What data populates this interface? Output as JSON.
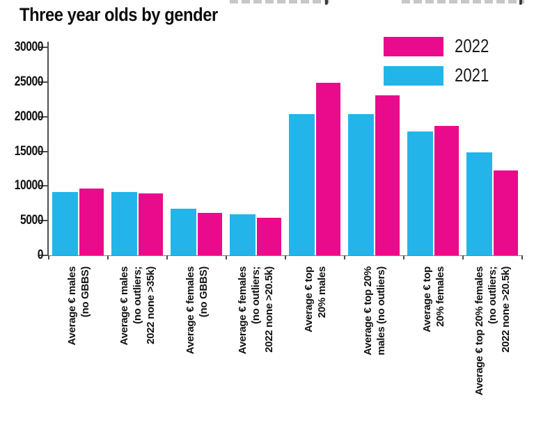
{
  "chart_data": {
    "type": "bar",
    "title": "Three year olds by gender",
    "categories": [
      "Average € males (no GBBS)",
      "Average € males (no outliers; 2022 none >35k)",
      "Average € females (no GBBS)",
      "Average € females (no outliers; 2022 none >20.5k)",
      "Average € top 20% males",
      "Average € top 20% males (no outliers)",
      "Average € top 20% females",
      "Average € top 20% females (no outliers; 2022 none >20.5k)"
    ],
    "category_display_lines": [
      [
        "Average € males",
        "(no GBBS)"
      ],
      [
        "Average € males",
        "(no outliers;",
        "2022 none >35k)"
      ],
      [
        "Average € females",
        "(no GBBS)"
      ],
      [
        "Average € females",
        "(no outliers;",
        "2022 none >20.5k)"
      ],
      [
        "Average € top",
        "20% males"
      ],
      [
        "Average € top 20%",
        "males (no outliers)"
      ],
      [
        "Average € top",
        "20% females"
      ],
      [
        "Average € top 20% females",
        "(no outliers;",
        "2022 none >20.5k)"
      ]
    ],
    "series": [
      {
        "name": "2021",
        "color": "#23B5E9",
        "values": [
          9100,
          9100,
          6700,
          5900,
          20400,
          20400,
          17900,
          14800
        ]
      },
      {
        "name": "2022",
        "color": "#EA0B8C",
        "values": [
          9600,
          8900,
          6100,
          5400,
          24900,
          23100,
          18700,
          12200
        ]
      }
    ],
    "bar_group_order": [
      "2021",
      "2022"
    ],
    "legend": {
      "position": "top-right",
      "entries": [
        "2022",
        "2021"
      ]
    },
    "xlabel": "",
    "ylabel": "",
    "ylim": [
      0,
      30000
    ],
    "ytick_step": 5000,
    "ytick_labels": [
      "0",
      "5000",
      "10000",
      "15000",
      "20000",
      "25000",
      "30000"
    ],
    "grid": false,
    "axis_color": "#4d4d4d"
  }
}
